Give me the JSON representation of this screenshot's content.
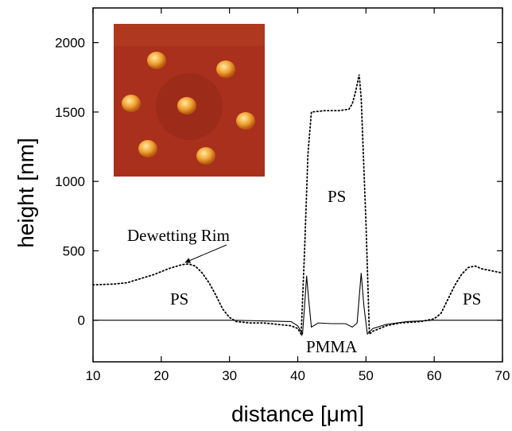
{
  "chart_data": {
    "type": "line",
    "x_label": "distance [μm]",
    "y_label": "height [nm]",
    "xlim": [
      10,
      70
    ],
    "xticks": [
      10,
      20,
      30,
      40,
      50,
      60,
      70
    ],
    "ylim": [
      -300,
      2250
    ],
    "yticks": [
      0,
      500,
      1000,
      1500,
      2000
    ],
    "series": [
      {
        "color": "#000000",
        "dash": "dotted",
        "x": [
          10,
          13,
          15,
          17,
          19,
          21,
          23,
          24,
          25,
          26,
          27,
          28,
          29,
          30,
          31,
          33,
          35,
          37,
          39,
          40,
          40.5,
          41,
          41.5,
          42,
          44,
          46,
          47.5,
          48,
          48.5,
          49,
          49.3,
          50,
          50.5,
          51,
          53,
          55,
          58,
          60,
          61,
          62,
          63,
          64,
          65,
          66,
          67,
          68,
          69,
          70
        ],
        "values": [
          255,
          260,
          270,
          300,
          330,
          370,
          400,
          405,
          390,
          340,
          270,
          180,
          80,
          20,
          -10,
          -20,
          -20,
          -30,
          -40,
          -60,
          -100,
          500,
          1200,
          1500,
          1510,
          1510,
          1520,
          1560,
          1650,
          1770,
          1600,
          700,
          -100,
          -80,
          -40,
          -20,
          -10,
          10,
          50,
          150,
          250,
          330,
          380,
          390,
          370,
          360,
          350,
          340
        ]
      },
      {
        "color": "#000000",
        "dash": "solid",
        "x": [
          10,
          27,
          30,
          35,
          39,
          40,
          40.7,
          41,
          41.3,
          41.6,
          42,
          43,
          45,
          47,
          48,
          48.7,
          49.3,
          49.7,
          50.2,
          51,
          53,
          56,
          60,
          70
        ],
        "values": [
          0,
          0,
          0,
          -5,
          -10,
          -40,
          -100,
          100,
          320,
          150,
          -50,
          -20,
          -25,
          -25,
          -50,
          -20,
          340,
          100,
          -100,
          -60,
          -30,
          -10,
          0,
          0
        ]
      }
    ],
    "annotations": [
      "Dewetting Rim",
      "PS",
      "PS",
      "PS",
      "PMMA"
    ]
  }
}
